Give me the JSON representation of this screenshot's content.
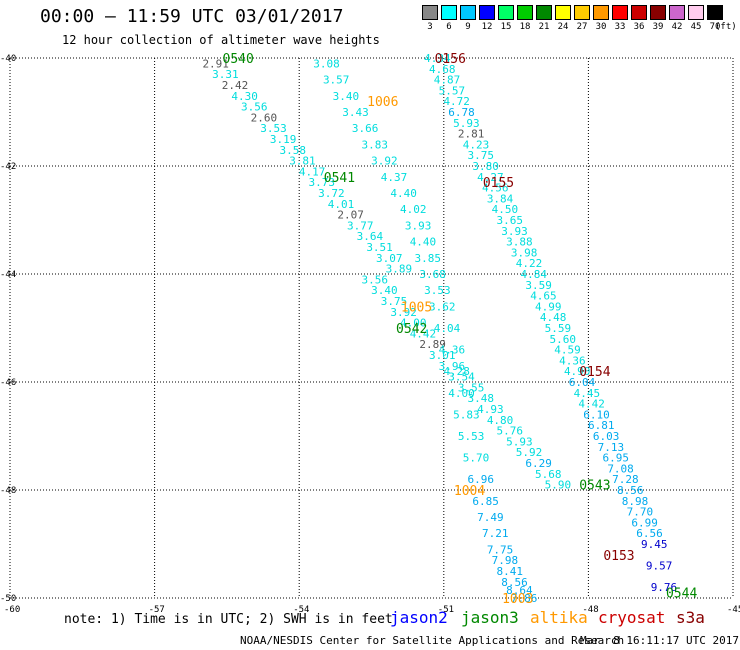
{
  "header": {
    "title": "00:00 — 11:59 UTC 03/01/2017",
    "subtitle": "12 hour collection of altimeter wave heights"
  },
  "color_scale": {
    "levels": [
      {
        "label": "3",
        "color": "#888888"
      },
      {
        "label": "6",
        "color": "#00ffff"
      },
      {
        "label": "9",
        "color": "#00c8ff"
      },
      {
        "label": "12",
        "color": "#0000ff"
      },
      {
        "label": "15",
        "color": "#00ff66"
      },
      {
        "label": "18",
        "color": "#00cc00"
      },
      {
        "label": "21",
        "color": "#008800"
      },
      {
        "label": "24",
        "color": "#ffff00"
      },
      {
        "label": "27",
        "color": "#ffcc00"
      },
      {
        "label": "30",
        "color": "#ff9900"
      },
      {
        "label": "33",
        "color": "#ff0000"
      },
      {
        "label": "36",
        "color": "#cc0000"
      },
      {
        "label": "39",
        "color": "#880000"
      },
      {
        "label": "42",
        "color": "#cc66cc"
      },
      {
        "label": "45",
        "color": "#ffccee"
      },
      {
        "label": "70",
        "color": "#000000"
      }
    ],
    "unit": "(ft)"
  },
  "footer": {
    "note": "note: 1) Time is in UTC; 2) SWH is in feet",
    "satellites": [
      {
        "name": "jason2",
        "color": "#0000ff"
      },
      {
        "name": "jason3",
        "color": "#008800"
      },
      {
        "name": "altika",
        "color": "#ff9900"
      },
      {
        "name": "cryosat",
        "color": "#cc0000"
      },
      {
        "name": "s3a",
        "color": "#880000"
      }
    ],
    "credit": "NOAA/NESDIS Center for Satellite Applications and Research",
    "timestamp": "Mar  8 16:11:17 UTC 2017"
  },
  "chart_data": {
    "type": "scatter",
    "title": "00:00 — 11:59 UTC 03/01/2017",
    "subtitle": "12 hour collection of altimeter wave heights",
    "xlim": [
      -60,
      -45
    ],
    "ylim": [
      -50,
      -40
    ],
    "xticks": [
      "-60",
      "-57",
      "-54",
      "-51",
      "-48",
      "-45"
    ],
    "yticks": [
      "-40",
      "-42",
      "-44",
      "-46",
      "-48",
      "-50"
    ],
    "grid": "dotted",
    "unit": "ft",
    "time_labels": [
      {
        "text": "0540",
        "x": -55.3,
        "y": -40.0,
        "color": "#008800"
      },
      {
        "text": "0541",
        "x": -53.2,
        "y": -42.2,
        "color": "#008800"
      },
      {
        "text": "0542",
        "x": -51.7,
        "y": -45.0,
        "color": "#008800"
      },
      {
        "text": "0543",
        "x": -47.9,
        "y": -47.9,
        "color": "#008800"
      },
      {
        "text": "0544",
        "x": -46.1,
        "y": -49.9,
        "color": "#008800"
      },
      {
        "text": "1006",
        "x": -52.3,
        "y": -40.8,
        "color": "#ff9900"
      },
      {
        "text": "1005",
        "x": -51.6,
        "y": -44.6,
        "color": "#ff9900"
      },
      {
        "text": "1004",
        "x": -50.5,
        "y": -48.0,
        "color": "#ff9900"
      },
      {
        "text": "1003",
        "x": -49.5,
        "y": -50.0,
        "color": "#ff9900"
      },
      {
        "text": "0156",
        "x": -50.9,
        "y": -40.0,
        "color": "#880000"
      },
      {
        "text": "0155",
        "x": -49.9,
        "y": -42.3,
        "color": "#880000"
      },
      {
        "text": "0154",
        "x": -47.9,
        "y": -45.8,
        "color": "#880000"
      },
      {
        "text": "0153",
        "x": -47.4,
        "y": -49.2,
        "color": "#880000"
      }
    ],
    "series": [
      {
        "name": "jason3",
        "color": "#00dddd",
        "x": [
          -55.8,
          -55.6,
          -55.4,
          -55.2,
          -55.0,
          -54.8,
          -54.6,
          -54.4,
          -54.2,
          -54.0,
          -53.8,
          -53.6,
          -53.4,
          -53.2,
          -53.0,
          -52.8,
          -52.6,
          -52.4,
          -52.2,
          -52.0
        ],
        "y": [
          -40.1,
          -40.3,
          -40.5,
          -40.7,
          -40.9,
          -41.1,
          -41.3,
          -41.5,
          -41.7,
          -41.9,
          -42.1,
          -42.3,
          -42.5,
          -42.7,
          -42.9,
          -43.1,
          -43.3,
          -43.5,
          -43.7,
          -43.9
        ],
        "values": [
          "2.91",
          "3.31",
          "2.42",
          "4.30",
          "3.56",
          "2.60",
          "3.53",
          "3.19",
          "3.58",
          "3.81",
          "4.17",
          "3.73",
          "3.72",
          "4.01",
          "2.07",
          "3.77",
          "3.64",
          "3.51",
          "3.07",
          "3.89"
        ]
      },
      {
        "name": "jason3-b",
        "color": "#00dddd",
        "x": [
          -52.5,
          -52.3,
          -52.1,
          -51.9,
          -51.7,
          -51.5,
          -51.3,
          -51.1,
          -50.9,
          -50.7,
          -50.5,
          -50.3,
          -50.1,
          -49.9,
          -49.7,
          -49.5,
          -49.3,
          -49.1,
          -48.9,
          -48.7
        ],
        "y": [
          -44.1,
          -44.3,
          -44.5,
          -44.7,
          -44.9,
          -45.1,
          -45.3,
          -45.5,
          -45.7,
          -45.9,
          -46.1,
          -46.3,
          -46.5,
          -46.7,
          -46.9,
          -47.1,
          -47.3,
          -47.5,
          -47.7,
          -47.9
        ],
        "values": [
          "3.56",
          "3.40",
          "3.75",
          "3.92",
          "4.00",
          "4.42",
          "2.89",
          "3.01",
          "3.96",
          "3.54",
          "3.55",
          "3.48",
          "4.93",
          "4.80",
          "5.76",
          "5.93",
          "5.92",
          "6.29",
          "5.68",
          "5.90"
        ]
      },
      {
        "name": "altika",
        "color": "#00dddd",
        "x": [
          -53.5,
          -53.3,
          -53.1,
          -52.9,
          -52.7,
          -52.5,
          -52.3,
          -52.1,
          -51.9,
          -51.7,
          -51.6,
          -51.5,
          -51.4,
          -51.3,
          -51.2,
          -51.1,
          -51.0,
          -50.9,
          -50.8,
          -50.7,
          -50.6,
          -50.5,
          -50.4,
          -50.3,
          -50.2
        ],
        "y": [
          -40.1,
          -40.4,
          -40.7,
          -41.0,
          -41.3,
          -41.6,
          -41.9,
          -42.2,
          -42.5,
          -42.8,
          -43.1,
          -43.4,
          -43.7,
          -44.0,
          -44.3,
          -44.6,
          -45.0,
          -45.4,
          -45.8,
          -46.2,
          -46.6,
          -47.0,
          -47.4,
          -47.8,
          -48.2
        ],
        "values": [
          "3.08",
          "3.57",
          "3.40",
          "3.43",
          "3.66",
          "3.83",
          "3.92",
          "4.37",
          "4.40",
          "4.02",
          "3.93",
          "4.40",
          "3.85",
          "3.68",
          "3.53",
          "3.62",
          "4.04",
          "4.36",
          "4.28",
          "4.00",
          "5.83",
          "5.53",
          "5.70",
          "6.96",
          "6.85"
        ]
      },
      {
        "name": "altika-b",
        "color": "#00dddd",
        "x": [
          -50.1,
          -50.0,
          -49.9,
          -49.8,
          -49.7,
          -49.6,
          -49.5,
          -49.4
        ],
        "y": [
          -48.5,
          -48.8,
          -49.1,
          -49.3,
          -49.5,
          -49.7,
          -49.85,
          -50.0
        ],
        "values": [
          "7.49",
          "7.21",
          "7.75",
          "7.98",
          "8.41",
          "8.56",
          "8.64",
          "7.86"
        ]
      },
      {
        "name": "cryosat",
        "color": "#00dddd",
        "x": [
          -51.2,
          -51.1,
          -51.0,
          -50.9,
          -50.8,
          -50.7,
          -50.6,
          -50.5,
          -50.4,
          -50.3,
          -50.2,
          -50.1,
          -50.0,
          -49.9,
          -49.8,
          -49.7,
          -49.6,
          -49.5,
          -49.4,
          -49.3,
          -49.2,
          -49.1,
          -49.0,
          -48.9,
          -48.8,
          -48.7,
          -48.6,
          -48.5,
          -48.4,
          -48.3
        ],
        "y": [
          -40.0,
          -40.2,
          -40.4,
          -40.6,
          -40.8,
          -41.0,
          -41.2,
          -41.4,
          -41.6,
          -41.8,
          -42.0,
          -42.2,
          -42.4,
          -42.6,
          -42.8,
          -43.0,
          -43.2,
          -43.4,
          -43.6,
          -43.8,
          -44.0,
          -44.2,
          -44.4,
          -44.6,
          -44.8,
          -45.0,
          -45.2,
          -45.4,
          -45.6,
          -45.8
        ],
        "values": [
          "4.34",
          "4.68",
          "4.87",
          "5.57",
          "4.72",
          "6.78",
          "5.93",
          "2.81",
          "4.23",
          "3.75",
          "3.80",
          "4.27",
          "4.56",
          "3.84",
          "4.50",
          "3.65",
          "3.93",
          "3.88",
          "3.98",
          "4.22",
          "4.84",
          "3.59",
          "4.65",
          "4.99",
          "4.48",
          "5.59",
          "5.60",
          "4.59",
          "4.36",
          "4.90"
        ]
      },
      {
        "name": "cryosat-b",
        "color": "#00dddd",
        "x": [
          -48.2,
          -48.1,
          -48.0,
          -47.9,
          -47.8,
          -47.7,
          -47.6,
          -47.5,
          -47.4,
          -47.3,
          -47.2,
          -47.1,
          -47.0,
          -46.9,
          -46.8,
          -46.7,
          -46.6,
          -46.5
        ],
        "y": [
          -46.0,
          -46.2,
          -46.4,
          -46.6,
          -46.8,
          -47.0,
          -47.2,
          -47.4,
          -47.6,
          -47.8,
          -48.0,
          -48.2,
          -48.4,
          -48.6,
          -48.8,
          -49.0,
          -49.4,
          -49.8
        ],
        "values": [
          "6.04",
          "4.45",
          "4.42",
          "6.10",
          "6.81",
          "6.03",
          "7.13",
          "6.95",
          "7.08",
          "7.28",
          "8.56",
          "8.98",
          "7.70",
          "6.99",
          "6.56",
          "9.45",
          "9.57",
          "9.76"
        ]
      }
    ]
  }
}
